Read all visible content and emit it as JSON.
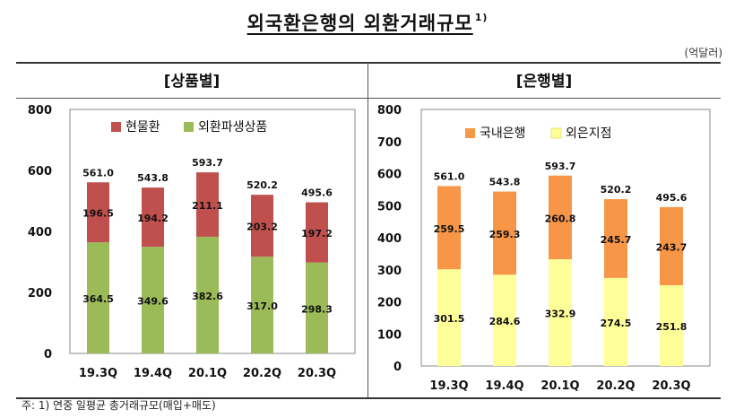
{
  "title": "외국환은행의 외환거래규모",
  "title_sup": "1)",
  "unit": "(억달러)",
  "footnote": "주: 1) 연중 일평균 총거래규모(매입+매도)",
  "colors": {
    "red": "#c0504d",
    "green": "#9bbb59",
    "orange": "#f79646",
    "yellow": "#ffff99"
  },
  "chart_data": [
    {
      "type": "bar",
      "stacked": true,
      "title": "[상품별]",
      "categories": [
        "19.3Q",
        "19.4Q",
        "20.1Q",
        "20.2Q",
        "20.3Q"
      ],
      "series": [
        {
          "name": "외환파생상품",
          "values": [
            364.5,
            349.6,
            382.6,
            317.0,
            298.3
          ],
          "color": "#9bbb59"
        },
        {
          "name": "현물환",
          "values": [
            196.5,
            194.2,
            211.1,
            203.2,
            197.2
          ],
          "color": "#c0504d"
        }
      ],
      "totals": [
        561.0,
        543.8,
        593.7,
        520.2,
        495.6
      ],
      "ylim": [
        0,
        800
      ],
      "yticks": [
        0,
        200,
        400,
        600,
        800
      ],
      "legend": "top-left"
    },
    {
      "type": "bar",
      "stacked": true,
      "title": "[은행별]",
      "categories": [
        "19.3Q",
        "19.4Q",
        "20.1Q",
        "20.2Q",
        "20.3Q"
      ],
      "series": [
        {
          "name": "외은지점",
          "values": [
            301.5,
            284.6,
            332.9,
            274.5,
            251.8
          ],
          "color": "#ffff99"
        },
        {
          "name": "국내은행",
          "values": [
            259.5,
            259.3,
            260.8,
            245.7,
            243.7
          ],
          "color": "#f79646"
        }
      ],
      "totals": [
        561.0,
        543.8,
        593.7,
        520.2,
        495.6
      ],
      "ylim": [
        0,
        800
      ],
      "yticks": [
        0,
        100,
        200,
        300,
        400,
        500,
        600,
        700,
        800
      ],
      "legend": "top-left"
    }
  ]
}
